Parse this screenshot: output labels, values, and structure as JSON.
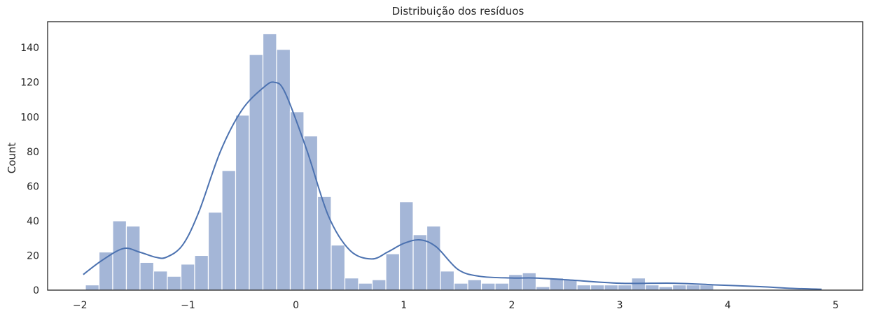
{
  "chart_data": {
    "type": "bar",
    "title": "Distribuição dos resíduos",
    "xlabel": "",
    "ylabel": "Count",
    "xlim": [
      -2.3,
      5.25
    ],
    "ylim": [
      0,
      155
    ],
    "xticks": [
      -2,
      -1,
      0,
      1,
      2,
      3,
      4,
      5
    ],
    "xtick_labels": [
      "−2",
      "−1",
      "0",
      "1",
      "2",
      "3",
      "4",
      "5"
    ],
    "yticks": [
      0,
      20,
      40,
      60,
      80,
      100,
      120,
      140
    ],
    "ytick_labels": [
      "0",
      "20",
      "40",
      "60",
      "80",
      "100",
      "120",
      "140"
    ],
    "grid": false,
    "bin_start": -1.95,
    "bin_width": 0.1265,
    "counts": [
      3,
      22,
      40,
      37,
      16,
      11,
      8,
      15,
      20,
      45,
      69,
      101,
      136,
      148,
      139,
      103,
      89,
      54,
      26,
      7,
      4,
      6,
      21,
      51,
      32,
      37,
      11,
      4,
      6,
      4,
      4,
      9,
      10,
      2,
      7,
      6,
      3,
      3,
      3,
      3,
      7,
      3,
      2,
      3,
      3,
      3
    ],
    "kde": {
      "x": [
        -1.97,
        -1.8,
        -1.6,
        -1.45,
        -1.3,
        -1.2,
        -1.05,
        -0.9,
        -0.7,
        -0.5,
        -0.3,
        -0.2,
        -0.1,
        0.1,
        0.3,
        0.5,
        0.7,
        0.85,
        1.0,
        1.15,
        1.3,
        1.5,
        1.7,
        2.0,
        2.2,
        2.5,
        3.0,
        3.5,
        3.9,
        4.3,
        4.6,
        4.87
      ],
      "y": [
        9,
        17,
        24,
        22,
        19,
        19,
        26,
        45,
        80,
        104,
        117,
        120,
        114,
        81,
        43,
        23,
        18,
        22,
        27,
        29,
        25,
        12,
        8,
        7,
        7,
        6,
        4,
        4,
        3,
        2,
        1,
        0.5
      ]
    },
    "colors": {
      "bar": "#a4b6d7",
      "bar_edge": "#ffffff",
      "line": "#4c72b0",
      "axes": "#262626"
    }
  }
}
